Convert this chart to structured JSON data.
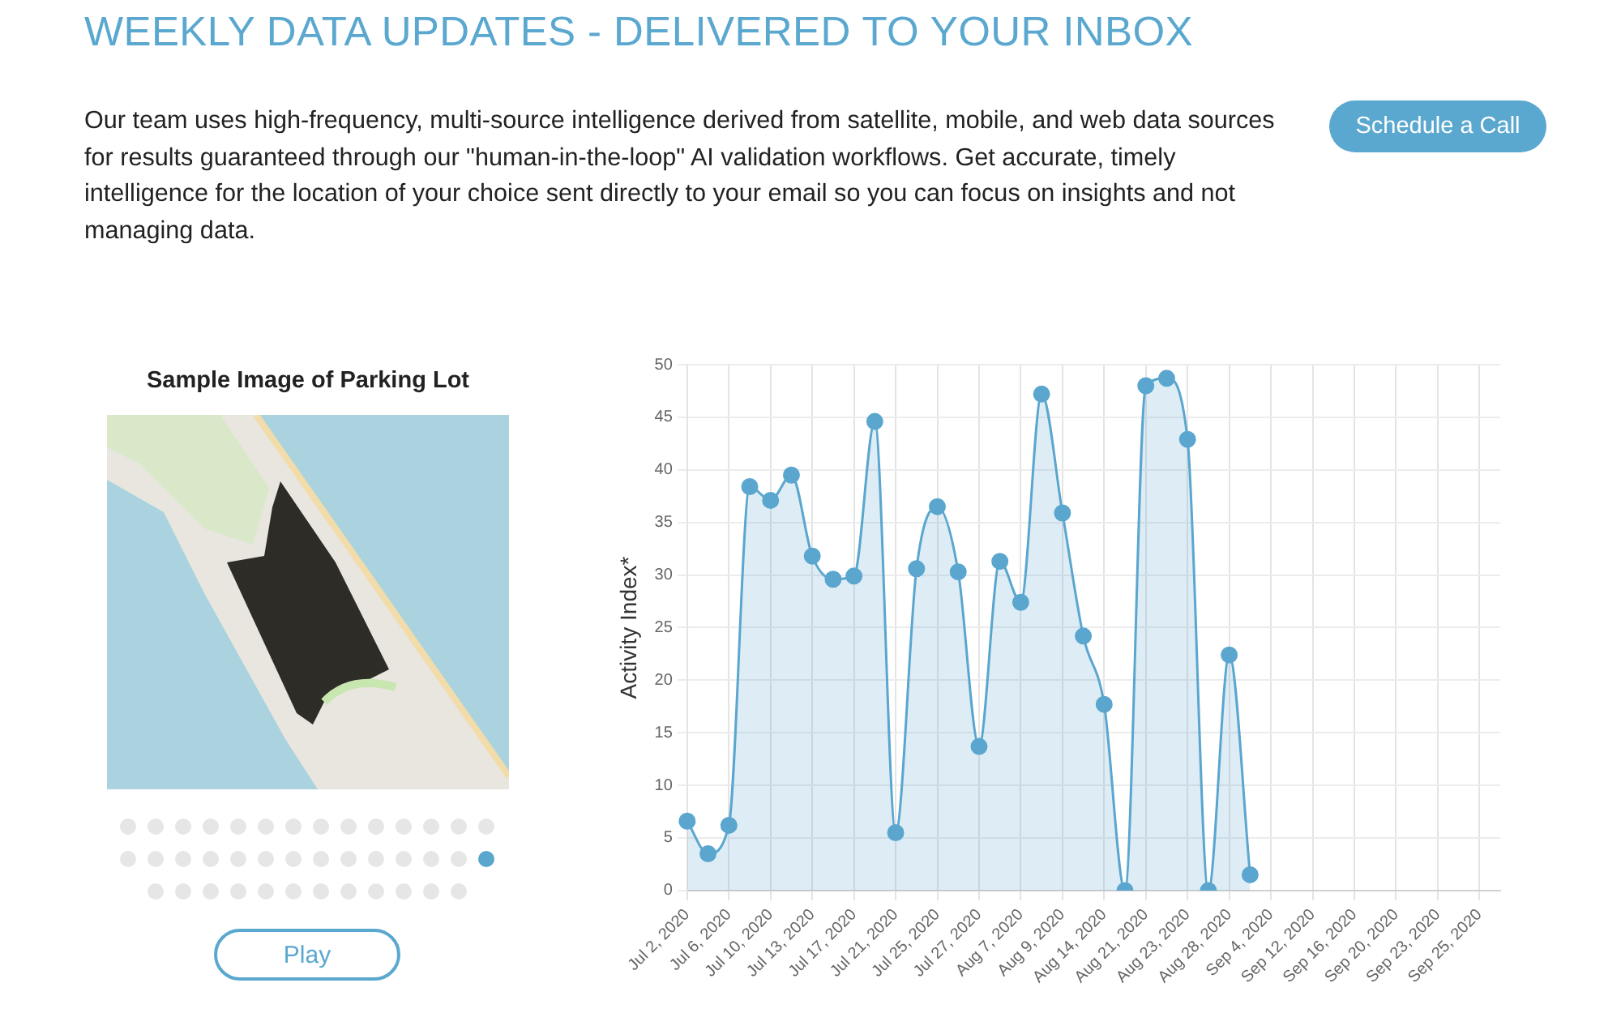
{
  "chart_data": {
    "type": "area",
    "title": "WEEKLY DATA UPDATES - DELIVERED TO YOUR INBOX",
    "subtitle": "Our team uses high-frequency, multi-source intelligence derived from satellite, mobile, and web data sources for results guaranteed through our \"human-in-the-loop\" AI validation workflows. Get accurate, timely intelligence for the location of your choice sent directly to your email so you can focus on insights and not managing data.",
    "annotations": [
      "Schedule a Call",
      "Sample Image of Parking Lot",
      "Play"
    ],
    "ylabel": "Activity Index*",
    "categories": [
      "Jul 2, 2020",
      null,
      "Jul 6, 2020",
      null,
      "Jul 10, 2020",
      null,
      "Jul 13, 2020",
      null,
      "Jul 17, 2020",
      null,
      "Jul 21, 2020",
      null,
      "Jul 25, 2020",
      null,
      "Jul 27, 2020",
      null,
      "Aug 7, 2020",
      null,
      "Aug 9, 2020",
      null,
      "Aug 14, 2020",
      null,
      "Aug 21, 2020",
      null,
      "Aug 23, 2020",
      null,
      "Aug 28, 2020",
      null,
      "Sep 4, 2020",
      null,
      "Sep 12, 2020",
      null,
      "Sep 16, 2020",
      null,
      "Sep 20, 2020",
      null,
      "Sep 23, 2020",
      null,
      "Sep 25, 2020",
      null
    ],
    "values": [
      6.6,
      3.5,
      6.2,
      38.4,
      37.1,
      39.5,
      31.8,
      29.6,
      29.9,
      44.6,
      5.5,
      30.6,
      36.5,
      30.3,
      13.7,
      31.3,
      27.4,
      47.2,
      35.9,
      24.2,
      17.7,
      0,
      48.0,
      48.7,
      42.9,
      0,
      22.4,
      1.5,
      null,
      null,
      null,
      null,
      null,
      null,
      null,
      null,
      null,
      null,
      null,
      null
    ],
    "color": "#5aa6cf",
    "ylim": [
      0,
      50
    ],
    "yticks": [
      0,
      5,
      10,
      15,
      20,
      25,
      30,
      35,
      40,
      45,
      50
    ],
    "grid": true,
    "marker": "circle"
  }
}
